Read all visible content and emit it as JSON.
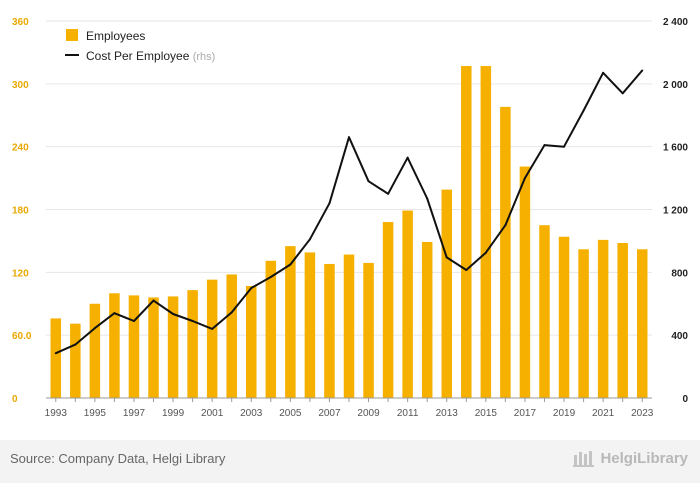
{
  "chart_data": {
    "type": "bar+line",
    "categories": [
      "1993",
      "1994",
      "1995",
      "1996",
      "1997",
      "1998",
      "1999",
      "2000",
      "2001",
      "2002",
      "2003",
      "2004",
      "2005",
      "2006",
      "2007",
      "2008",
      "2009",
      "2010",
      "2011",
      "2012",
      "2013",
      "2014",
      "2015",
      "2016",
      "2017",
      "2018",
      "2019",
      "2020",
      "2021",
      "2022",
      "2023"
    ],
    "x_tick_labels": [
      "1993",
      "1995",
      "1997",
      "1999",
      "2001",
      "2003",
      "2005",
      "2007",
      "2009",
      "2011",
      "2013",
      "2015",
      "2017",
      "2019",
      "2021",
      "2023"
    ],
    "series": [
      {
        "name": "Employees",
        "kind": "bar",
        "axis": "left",
        "color": "#f5b000",
        "values": [
          76,
          71,
          90,
          100,
          98,
          96,
          97,
          103,
          113,
          118,
          107,
          131,
          145,
          139,
          128,
          137,
          129,
          168,
          179,
          149,
          199,
          317,
          317,
          278,
          221,
          165,
          154,
          142,
          151,
          148,
          142
        ]
      },
      {
        "name": "Cost Per Employee",
        "name_suffix": "(rhs)",
        "kind": "line",
        "axis": "right",
        "color": "#111111",
        "values": [
          285,
          340,
          445,
          540,
          490,
          620,
          535,
          490,
          440,
          545,
          700,
          770,
          850,
          1010,
          1240,
          1660,
          1380,
          1300,
          1530,
          1270,
          895,
          815,
          925,
          1100,
          1400,
          1610,
          1600,
          1830,
          2070,
          1940,
          2085
        ]
      }
    ],
    "y_left": {
      "min": 0,
      "max": 360,
      "ticks": [
        0,
        60,
        120,
        180,
        240,
        300,
        360
      ],
      "tick_labels": [
        "0",
        "60.0",
        "120",
        "180",
        "240",
        "300",
        "360"
      ]
    },
    "y_right": {
      "min": 0,
      "max": 2400,
      "ticks": [
        0,
        400,
        800,
        1200,
        1600,
        2000,
        2400
      ],
      "tick_labels": [
        "0",
        "400",
        "800",
        "1 200",
        "1 600",
        "2 000",
        "2 400"
      ]
    },
    "legend_position": "top-left",
    "grid": true
  },
  "footer": {
    "source": "Source: Company Data, Helgi Library",
    "brand": "HelgiLibrary"
  },
  "colors": {
    "bar": "#f5b000",
    "line": "#111111",
    "grid": "#e6e6e6",
    "left_axis": "#e8a800"
  }
}
